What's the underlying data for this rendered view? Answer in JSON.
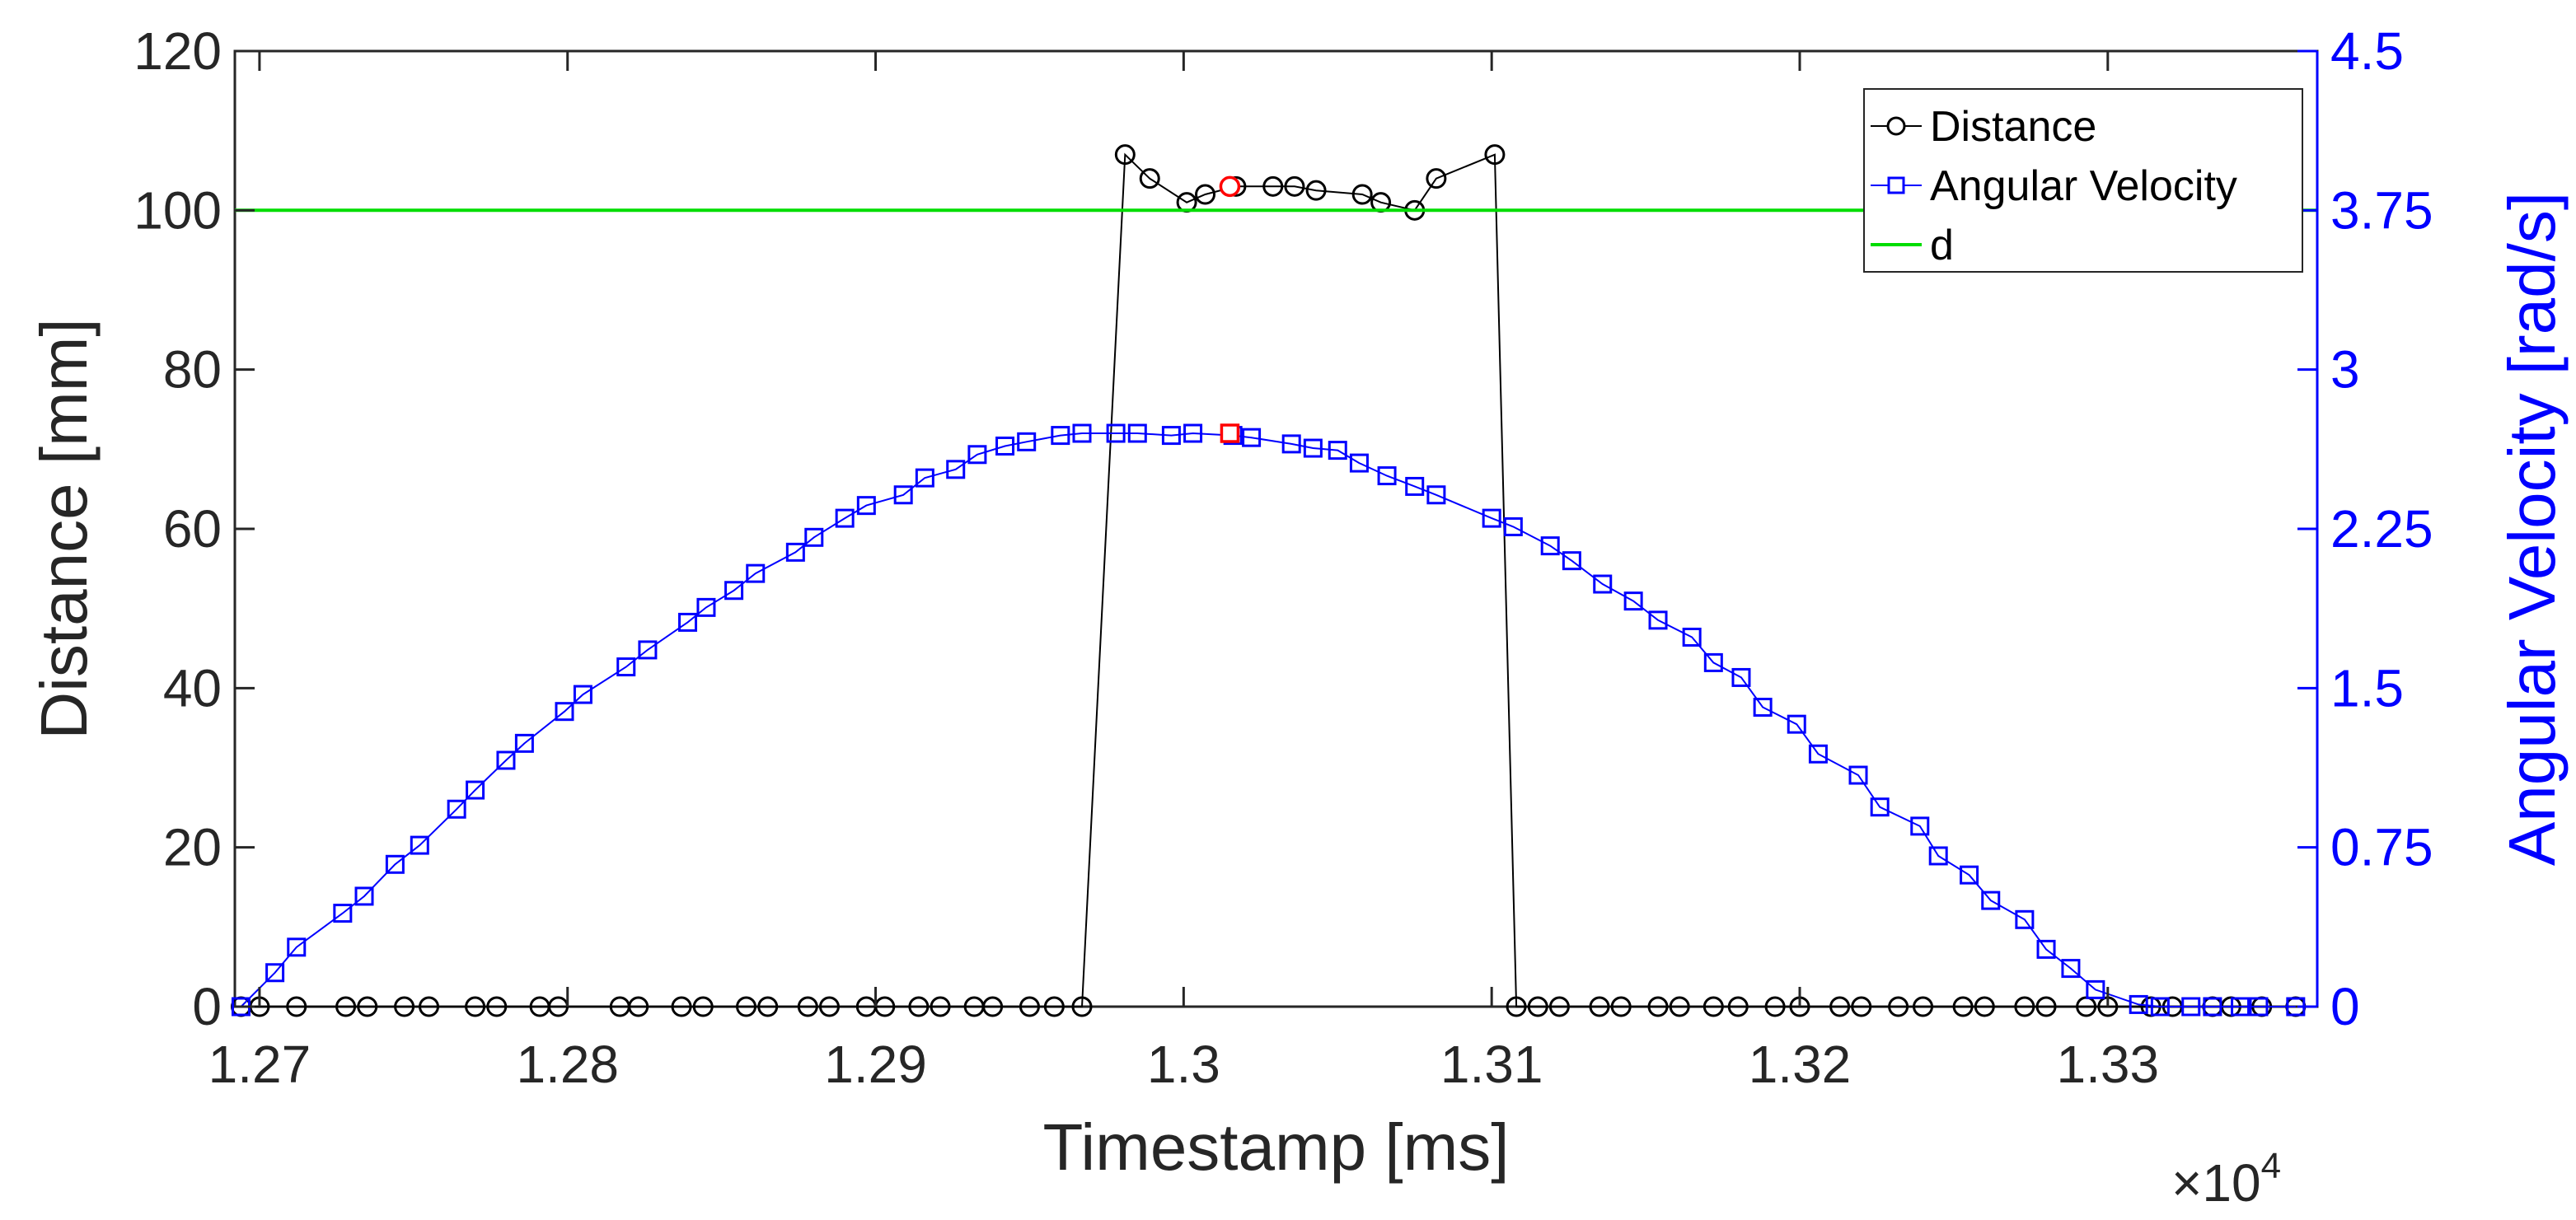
{
  "chart_data": {
    "type": "line",
    "xlabel": "Timestamp  [ms]",
    "ylabel": "Distance [mm]",
    "ylabel_right": "Angular Velocity [rad/s]",
    "x_exponent_label": "×10",
    "x_exponent_power": "4",
    "xlim": [
      12692,
      13368
    ],
    "ylim": [
      0,
      120
    ],
    "ylim_right": [
      0,
      4.5
    ],
    "x_ticks": [
      12700,
      12800,
      12900,
      13000,
      13100,
      13200,
      13300
    ],
    "x_tick_labels": [
      "1.27",
      "1.28",
      "1.29",
      "1.3",
      "1.31",
      "1.32",
      "1.33"
    ],
    "y_ticks": [
      0,
      20,
      40,
      60,
      80,
      100,
      120
    ],
    "y_tick_labels": [
      "0",
      "20",
      "40",
      "60",
      "80",
      "100",
      "120"
    ],
    "y_ticks_right": [
      0,
      0.75,
      1.5,
      2.25,
      3,
      3.75,
      4.5
    ],
    "y_tick_labels_right": [
      "0",
      "0.75",
      "1.5",
      "2.25",
      "3",
      "3.75",
      "4.5"
    ],
    "grid": false,
    "legend_position": "top-right",
    "legend": [
      "Distance",
      "Angular Velocity",
      "d"
    ],
    "colors": {
      "distance": "#000000",
      "angular_velocity": "#0000ff",
      "d": "#00dd00",
      "highlight": "#ff0000",
      "right_axis": "#0000ff"
    },
    "series": [
      {
        "name": "Distance",
        "axis": "left",
        "marker": "circle",
        "x": [
          12694,
          12700,
          12712,
          12728,
          12735,
          12747,
          12755,
          12770,
          12777,
          12791,
          12797,
          12817,
          12823,
          12837,
          12844,
          12858,
          12865,
          12878,
          12885,
          12897,
          12903,
          12914,
          12921,
          12932,
          12938,
          12950,
          12958,
          12967,
          12981,
          12989,
          13001,
          13007,
          13017,
          13029,
          13036,
          13043,
          13058,
          13064,
          13075,
          13082,
          13101,
          13108,
          13115,
          13122,
          13135,
          13142,
          13154,
          13161,
          13172,
          13180,
          13192,
          13200,
          13213,
          13220,
          13232,
          13240,
          13253,
          13260,
          13273,
          13280,
          13293,
          13300,
          13314,
          13321,
          13334,
          13340,
          13350,
          13361
        ],
        "y": [
          0,
          0,
          0,
          0,
          0,
          0,
          0,
          0,
          0,
          0,
          0,
          0,
          0,
          0,
          0,
          0,
          0,
          0,
          0,
          0,
          0,
          0,
          0,
          0,
          0,
          0,
          0,
          0,
          107,
          104,
          101,
          102,
          103,
          103,
          103,
          102.5,
          102,
          101,
          100,
          104,
          107,
          0,
          0,
          0,
          0,
          0,
          0,
          0,
          0,
          0,
          0,
          0,
          0,
          0,
          0,
          0,
          0,
          0,
          0,
          0,
          0,
          0,
          0,
          0,
          0,
          0,
          0,
          0
        ]
      },
      {
        "name": "Angular Velocity",
        "axis": "right",
        "marker": "square",
        "x": [
          12694,
          12705,
          12712,
          12727,
          12734,
          12744,
          12752,
          12764,
          12770,
          12780,
          12786,
          12799,
          12805,
          12819,
          12826,
          12839,
          12845,
          12854,
          12861,
          12874,
          12880,
          12890,
          12897,
          12909,
          12916,
          12926,
          12933,
          12942,
          12949,
          12960,
          12967,
          12978,
          12985,
          12996,
          13003,
          13016,
          13022,
          13035,
          13042,
          13050,
          13057,
          13066,
          13075,
          13082,
          13100,
          13107,
          13119,
          13126,
          13136,
          13146,
          13154,
          13165,
          13172,
          13181,
          13188,
          13199,
          13206,
          13219,
          13226,
          13239,
          13245,
          13255,
          13262,
          13273,
          13280,
          13288,
          13296,
          13310,
          13317,
          13327,
          13334,
          13343,
          13349,
          13361
        ],
        "y": [
          0,
          0.16,
          0.28,
          0.44,
          0.52,
          0.67,
          0.76,
          0.93,
          1.02,
          1.16,
          1.24,
          1.39,
          1.47,
          1.6,
          1.68,
          1.81,
          1.88,
          1.96,
          2.04,
          2.14,
          2.21,
          2.3,
          2.36,
          2.41,
          2.49,
          2.53,
          2.6,
          2.64,
          2.66,
          2.69,
          2.7,
          2.7,
          2.7,
          2.69,
          2.7,
          2.69,
          2.68,
          2.65,
          2.63,
          2.62,
          2.56,
          2.5,
          2.45,
          2.41,
          2.3,
          2.26,
          2.17,
          2.1,
          1.99,
          1.91,
          1.82,
          1.74,
          1.62,
          1.55,
          1.41,
          1.33,
          1.19,
          1.09,
          0.94,
          0.85,
          0.71,
          0.62,
          0.5,
          0.41,
          0.27,
          0.18,
          0.08,
          0.01,
          0.0,
          0.0,
          0.0,
          0.0,
          0.0,
          0.0
        ]
      },
      {
        "name": "d",
        "axis": "left",
        "marker": "none",
        "x": [
          12692,
          13368
        ],
        "y": [
          100,
          100
        ]
      }
    ],
    "highlight_points": [
      {
        "series": "Distance",
        "x": 13015,
        "y": 103
      },
      {
        "series": "Angular Velocity",
        "x": 13015,
        "y": 2.7
      }
    ]
  }
}
